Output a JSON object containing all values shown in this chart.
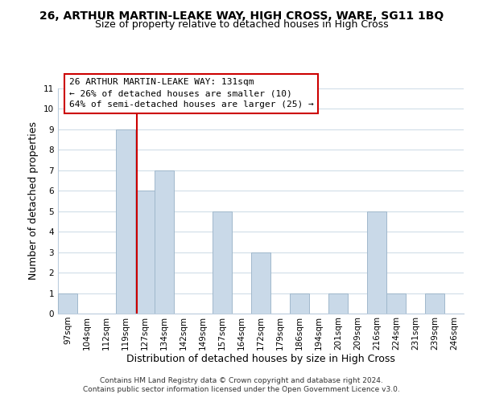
{
  "title": "26, ARTHUR MARTIN-LEAKE WAY, HIGH CROSS, WARE, SG11 1BQ",
  "subtitle": "Size of property relative to detached houses in High Cross",
  "xlabel": "Distribution of detached houses by size in High Cross",
  "ylabel": "Number of detached properties",
  "footnote1": "Contains HM Land Registry data © Crown copyright and database right 2024.",
  "footnote2": "Contains public sector information licensed under the Open Government Licence v3.0.",
  "bar_labels": [
    "97sqm",
    "104sqm",
    "112sqm",
    "119sqm",
    "127sqm",
    "134sqm",
    "142sqm",
    "149sqm",
    "157sqm",
    "164sqm",
    "172sqm",
    "179sqm",
    "186sqm",
    "194sqm",
    "201sqm",
    "209sqm",
    "216sqm",
    "224sqm",
    "231sqm",
    "239sqm",
    "246sqm"
  ],
  "bar_values": [
    1,
    0,
    0,
    9,
    6,
    7,
    0,
    0,
    5,
    0,
    3,
    0,
    1,
    0,
    1,
    0,
    5,
    1,
    0,
    1,
    0
  ],
  "bar_color": "#c9d9e8",
  "bar_edge_color": "#a0b8cc",
  "subject_line_label": "26 ARTHUR MARTIN-LEAKE WAY: 131sqm",
  "annotation_line1": "← 26% of detached houses are smaller (10)",
  "annotation_line2": "64% of semi-detached houses are larger (25) →",
  "annotation_box_color": "#ffffff",
  "annotation_box_edge": "#cc0000",
  "ref_line_color": "#cc0000",
  "ylim": [
    0,
    11
  ],
  "yticks": [
    0,
    1,
    2,
    3,
    4,
    5,
    6,
    7,
    8,
    9,
    10,
    11
  ],
  "grid_color": "#d0dde8",
  "background_color": "#ffffff",
  "title_fontsize": 10,
  "subtitle_fontsize": 9,
  "axis_label_fontsize": 9,
  "tick_fontsize": 7.5,
  "annotation_fontsize": 8,
  "footnote_fontsize": 6.5
}
